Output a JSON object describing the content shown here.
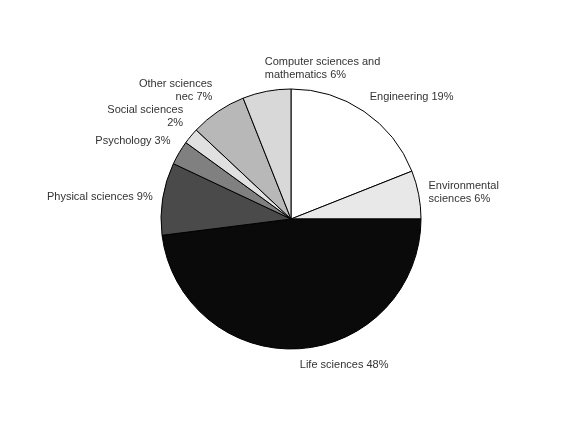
{
  "chart_data": {
    "type": "pie",
    "categories": [
      "Engineering 19%",
      "Environmental\nsciences 6%",
      "Life sciences 48%",
      "Physical sciences 9%",
      "Psychology 3%",
      "Social sciences\n2%",
      "Other sciences\nnec 7%",
      "Computer sciences and\nmathematics 6%"
    ],
    "values": [
      19,
      6,
      48,
      9,
      3,
      2,
      7,
      6
    ],
    "colors": [
      "#ffffff",
      "#e8e8e8",
      "#0a0a0a",
      "#4a4a4a",
      "#808080",
      "#e0e0e0",
      "#b8b8b8",
      "#d8d8d8"
    ]
  }
}
